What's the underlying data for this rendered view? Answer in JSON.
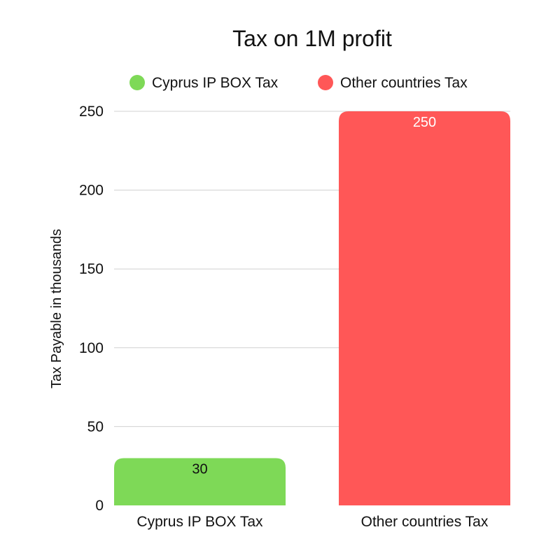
{
  "chart_data": {
    "type": "bar",
    "title": "Tax on 1M profit",
    "xlabel": "",
    "ylabel": "Tax Payable in thousands",
    "categories": [
      "Cyprus IP BOX Tax",
      "Other countries Tax"
    ],
    "values": [
      30,
      250
    ],
    "colors": [
      "#7ed957",
      "#ff5757"
    ],
    "label_colors": [
      "#111111",
      "#ffffff"
    ],
    "ylim": [
      0,
      250
    ],
    "yticks": [
      0,
      50,
      100,
      150,
      200,
      250
    ],
    "grid": true,
    "legend": {
      "placement": "top-center",
      "items": [
        {
          "label": "Cyprus IP BOX Tax",
          "color": "#7ed957"
        },
        {
          "label": "Other countries Tax",
          "color": "#ff5757"
        }
      ]
    }
  }
}
